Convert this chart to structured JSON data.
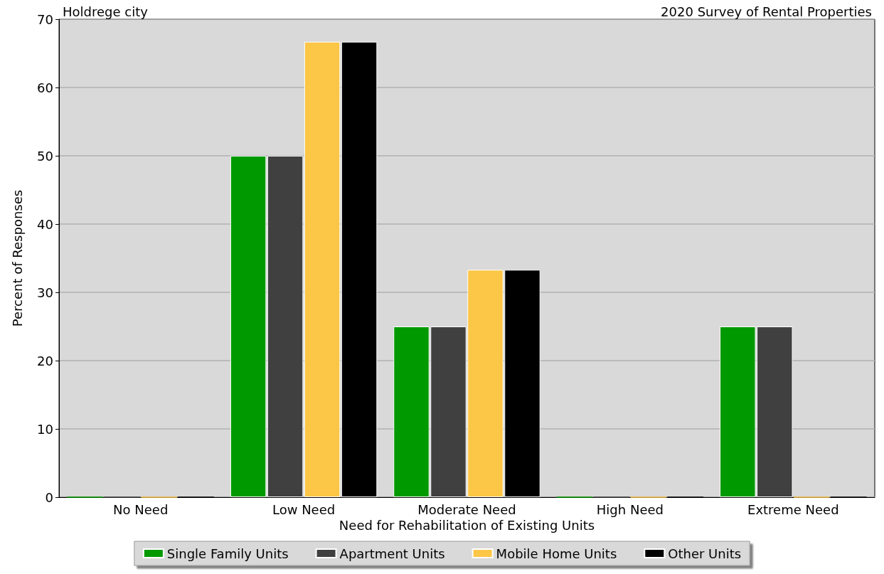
{
  "chart_data": {
    "type": "bar",
    "title": "2020 Survey of Rental Properties",
    "subtitle": "Holdrege city",
    "xlabel": "Need for Rehabilitation of Existing Units",
    "ylabel": "Percent of Responses",
    "categories": [
      "No Need",
      "Low Need",
      "Moderate Need",
      "High Need",
      "Extreme Need"
    ],
    "series": [
      {
        "name": "Single Family Units",
        "color": "#009900",
        "values": [
          0,
          50,
          25,
          0,
          25
        ]
      },
      {
        "name": "Apartment Units",
        "color": "#404040",
        "values": [
          0,
          50,
          25,
          0,
          25
        ]
      },
      {
        "name": "Mobile Home Units",
        "color": "#fcc647",
        "values": [
          0,
          66.7,
          33.3,
          0,
          0
        ]
      },
      {
        "name": "Other Units",
        "color": "#000000",
        "values": [
          0,
          66.7,
          33.3,
          0,
          0
        ]
      }
    ],
    "ylim": [
      0,
      70
    ],
    "yticks": [
      0,
      10,
      20,
      30,
      40,
      50,
      60,
      70
    ],
    "grid": "y",
    "legend": "bottom"
  }
}
